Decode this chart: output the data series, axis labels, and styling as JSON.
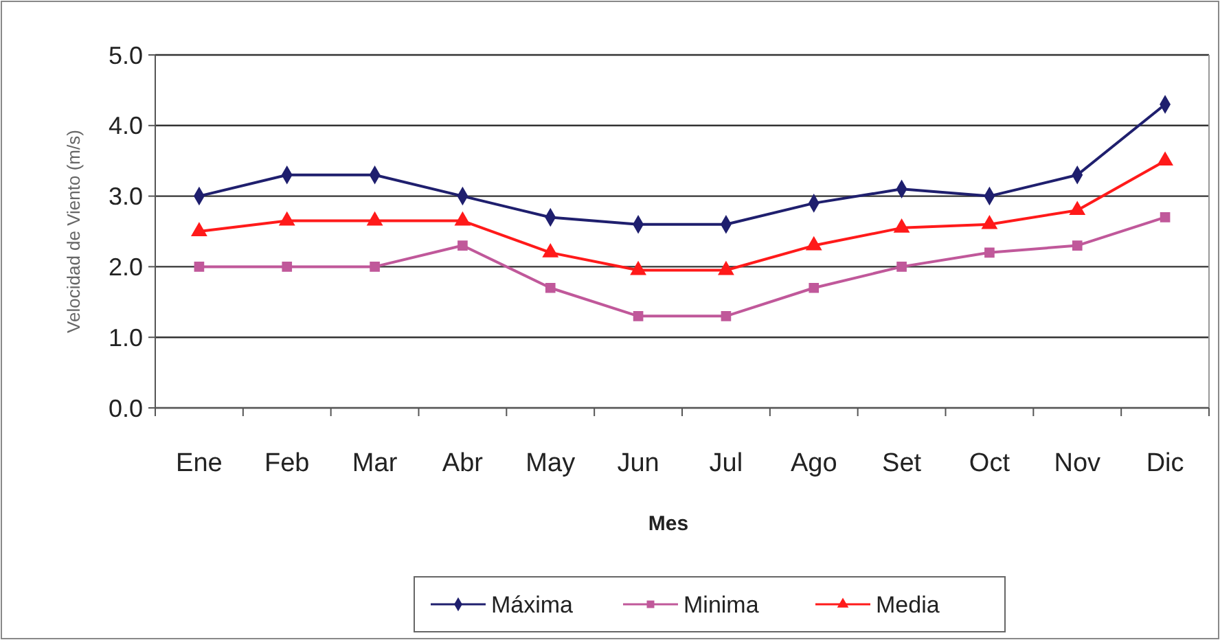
{
  "chart_data": {
    "type": "line",
    "xlabel": "Mes",
    "ylabel": "Velocidad de Viento (m/s)",
    "categories": [
      "Ene",
      "Feb",
      "Mar",
      "Abr",
      "May",
      "Jun",
      "Jul",
      "Ago",
      "Set",
      "Oct",
      "Nov",
      "Dic"
    ],
    "series": [
      {
        "name": "Máxima",
        "color": "#1f1f6e",
        "marker": "diamond",
        "values": [
          3.0,
          3.3,
          3.3,
          3.0,
          2.7,
          2.6,
          2.6,
          2.9,
          3.1,
          3.0,
          3.3,
          4.3
        ]
      },
      {
        "name": "Minima",
        "color": "#c0589a",
        "marker": "square",
        "values": [
          2.0,
          2.0,
          2.0,
          2.3,
          1.7,
          1.3,
          1.3,
          1.7,
          2.0,
          2.2,
          2.3,
          2.7
        ]
      },
      {
        "name": "Media",
        "color": "#ff1a1a",
        "marker": "triangle",
        "values": [
          2.5,
          2.65,
          2.65,
          2.65,
          2.2,
          1.95,
          1.95,
          2.3,
          2.55,
          2.6,
          2.8,
          3.5
        ]
      }
    ],
    "ylim": [
      0,
      5
    ],
    "yticks": [
      {
        "value": 0,
        "label": "0.0"
      },
      {
        "value": 1,
        "label": "1.0"
      },
      {
        "value": 2,
        "label": "2.0"
      },
      {
        "value": 3,
        "label": "3.0"
      },
      {
        "value": 4,
        "label": "4.0"
      },
      {
        "value": 5,
        "label": "5.0"
      }
    ],
    "grid": "y",
    "legend": "bottom",
    "line_style": "solid"
  }
}
